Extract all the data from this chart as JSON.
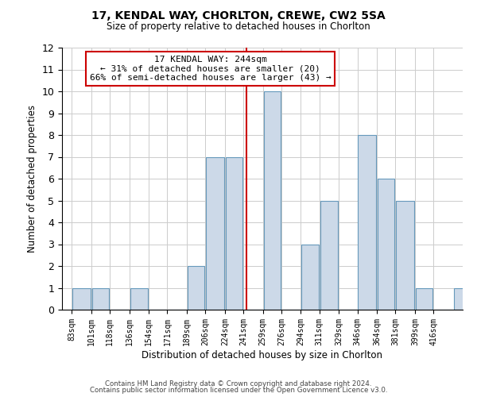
{
  "title": "17, KENDAL WAY, CHORLTON, CREWE, CW2 5SA",
  "subtitle": "Size of property relative to detached houses in Chorlton",
  "xlabel": "Distribution of detached houses by size in Chorlton",
  "ylabel": "Number of detached properties",
  "footnote1": "Contains HM Land Registry data © Crown copyright and database right 2024.",
  "footnote2": "Contains public sector information licensed under the Open Government Licence v3.0.",
  "annotation_title": "17 KENDAL WAY: 244sqm",
  "annotation_line1": "← 31% of detached houses are smaller (20)",
  "annotation_line2": "66% of semi-detached houses are larger (43) →",
  "property_value": 244,
  "bar_color": "#ccd9e8",
  "bar_edge_color": "#6699bb",
  "vline_color": "#cc0000",
  "annotation_box_edge": "#cc0000",
  "bins": [
    83,
    101,
    118,
    136,
    154,
    171,
    189,
    206,
    224,
    241,
    259,
    276,
    294,
    311,
    329,
    346,
    364,
    381,
    399,
    416,
    434
  ],
  "counts": [
    1,
    1,
    0,
    1,
    0,
    0,
    2,
    7,
    7,
    0,
    10,
    0,
    3,
    5,
    0,
    8,
    6,
    5,
    1,
    0,
    1
  ],
  "ylim": [
    0,
    12
  ],
  "yticks": [
    0,
    1,
    2,
    3,
    4,
    5,
    6,
    7,
    8,
    9,
    10,
    11,
    12
  ],
  "bg_color": "#ffffff",
  "grid_color": "#cccccc"
}
